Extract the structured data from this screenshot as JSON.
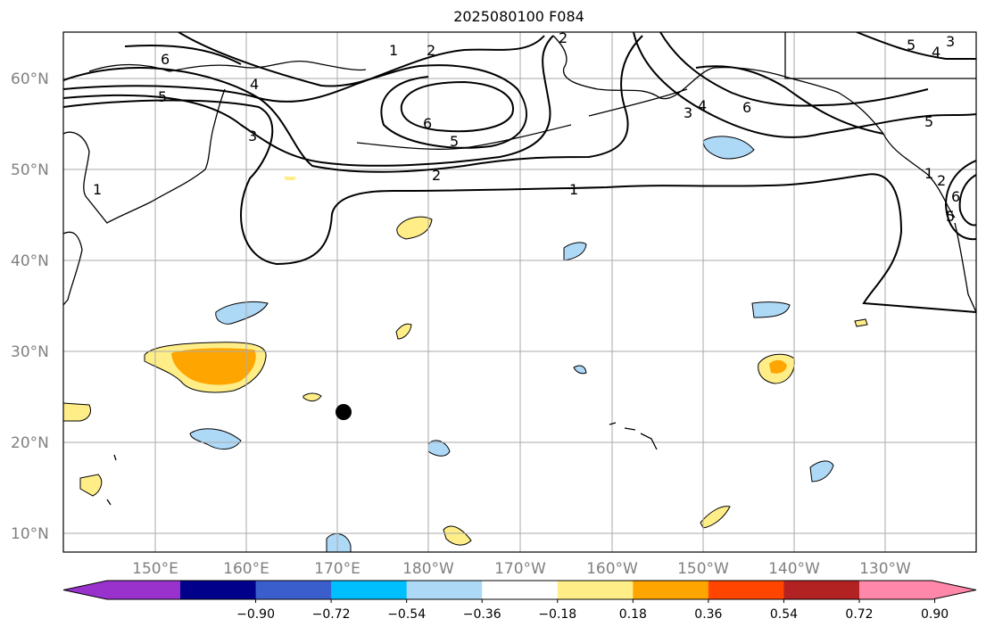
{
  "title": "2025080100 F084",
  "lat_labels": [
    "60°N",
    "50°N",
    "40°N",
    "30°N",
    "20°N",
    "10°N"
  ],
  "lon_labels": [
    "150°E",
    "160°E",
    "170°E",
    "180°W",
    "170°W",
    "160°W",
    "150°W",
    "140°W",
    "130°W"
  ],
  "colorbar": {
    "ticks": [
      "−0.90",
      "−0.72",
      "−0.54",
      "−0.36",
      "−0.18",
      "0.18",
      "0.36",
      "0.54",
      "0.72",
      "0.90"
    ],
    "colors": [
      "#9932cc",
      "#00008b",
      "#3a5fcd",
      "#00bfff",
      "#add8f6",
      "#ffffff",
      "#ffee88",
      "#ffa500",
      "#ff4500",
      "#b22222",
      "#ff88aa"
    ]
  },
  "contour_labels": [
    "6",
    "5",
    "4",
    "3",
    "2",
    "1",
    "1",
    "2",
    "6",
    "5",
    "2",
    "1",
    "3",
    "4",
    "6",
    "5",
    "5",
    "4",
    "3",
    "5",
    "6",
    "1",
    "2"
  ],
  "colors": {
    "contour": "#000000",
    "grid": "#aaaaaa",
    "coast": "#000000",
    "light_blue": "#add8f6",
    "light_yellow": "#ffee88",
    "orange": "#ffa500"
  },
  "marker": "black-dot"
}
